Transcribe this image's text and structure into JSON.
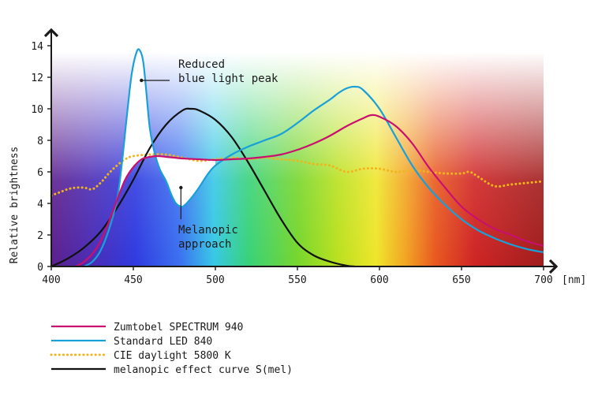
{
  "chart_data": {
    "type": "line",
    "title": "",
    "xlabel": "",
    "ylabel": "Relative brightness",
    "x_unit": "[nm]",
    "xlim": [
      400,
      700
    ],
    "ylim": [
      0,
      14
    ],
    "x_ticks": [
      400,
      450,
      500,
      550,
      600,
      650,
      700
    ],
    "y_ticks": [
      0,
      2,
      4,
      6,
      8,
      10,
      12,
      14
    ],
    "grid": false,
    "legend_position": "bottom-left",
    "series": [
      {
        "name": "Zumtobel SPECTRUM 940",
        "color": "#c8106e",
        "style": "solid",
        "x": [
          415,
          420,
          425,
          430,
          435,
          440,
          445,
          450,
          455,
          460,
          465,
          470,
          475,
          480,
          490,
          500,
          510,
          520,
          530,
          540,
          550,
          560,
          570,
          580,
          590,
          595,
          600,
          610,
          620,
          630,
          640,
          650,
          660,
          670,
          680,
          690,
          700
        ],
        "y": [
          0,
          0.3,
          0.8,
          1.6,
          2.8,
          4.2,
          5.5,
          6.3,
          6.8,
          6.95,
          7.0,
          6.95,
          6.9,
          6.85,
          6.8,
          6.75,
          6.8,
          6.85,
          6.95,
          7.1,
          7.4,
          7.8,
          8.3,
          8.9,
          9.4,
          9.6,
          9.5,
          8.9,
          7.8,
          6.3,
          5.0,
          3.8,
          3.0,
          2.4,
          2.0,
          1.6,
          1.3
        ]
      },
      {
        "name": "Standard LED 840",
        "color": "#1aa0d8",
        "style": "solid",
        "x": [
          420,
          425,
          430,
          435,
          440,
          443,
          446,
          449,
          452,
          454,
          456,
          458,
          460,
          463,
          466,
          470,
          473,
          476,
          480,
          485,
          490,
          495,
          500,
          510,
          520,
          530,
          540,
          550,
          560,
          570,
          575,
          580,
          585,
          590,
          600,
          610,
          620,
          630,
          640,
          650,
          660,
          670,
          680,
          690,
          700
        ],
        "y": [
          0,
          0.3,
          1.0,
          2.3,
          4.2,
          6.5,
          9.5,
          12.2,
          13.6,
          13.7,
          13.0,
          11.0,
          8.8,
          7.2,
          6.2,
          5.4,
          4.6,
          4.0,
          3.8,
          4.3,
          5.0,
          5.8,
          6.4,
          7.1,
          7.6,
          8.0,
          8.4,
          9.1,
          9.9,
          10.6,
          11.0,
          11.3,
          11.4,
          11.2,
          10.0,
          8.2,
          6.4,
          5.0,
          3.9,
          3.0,
          2.3,
          1.8,
          1.4,
          1.1,
          0.9
        ]
      },
      {
        "name": "CIE daylight 5800 K",
        "color": "#f2b41c",
        "style": "dotted",
        "x": [
          400,
          405,
          410,
          415,
          420,
          425,
          430,
          435,
          440,
          445,
          450,
          460,
          470,
          480,
          490,
          500,
          510,
          520,
          530,
          540,
          550,
          560,
          570,
          580,
          590,
          600,
          610,
          620,
          630,
          640,
          650,
          655,
          660,
          670,
          680,
          690,
          700
        ],
        "y": [
          4.5,
          4.7,
          4.9,
          5.0,
          5.0,
          4.9,
          5.3,
          5.9,
          6.4,
          6.8,
          7.0,
          7.1,
          7.1,
          6.9,
          6.7,
          6.8,
          6.9,
          6.8,
          6.9,
          6.8,
          6.7,
          6.5,
          6.4,
          6.0,
          6.2,
          6.2,
          6.0,
          6.1,
          6.0,
          5.9,
          5.9,
          6.0,
          5.7,
          5.1,
          5.2,
          5.3,
          5.4
        ]
      },
      {
        "name": "melanopic effect curve S(mel)",
        "color": "#111111",
        "style": "solid",
        "x": [
          400,
          410,
          420,
          430,
          440,
          450,
          460,
          470,
          480,
          485,
          490,
          500,
          510,
          520,
          530,
          540,
          550,
          560,
          570,
          580,
          585
        ],
        "y": [
          0,
          0.5,
          1.2,
          2.2,
          3.7,
          5.5,
          7.5,
          9.0,
          9.9,
          10.0,
          9.9,
          9.3,
          8.2,
          6.6,
          4.8,
          3.0,
          1.5,
          0.7,
          0.3,
          0.05,
          0
        ]
      }
    ],
    "annotations": [
      {
        "lines": [
          "Reduced",
          "blue light peak"
        ],
        "x": 454,
        "y": 11.8
      },
      {
        "lines": [
          "Melanopic",
          "approach"
        ],
        "x": 479,
        "y": 5.0
      }
    ]
  }
}
